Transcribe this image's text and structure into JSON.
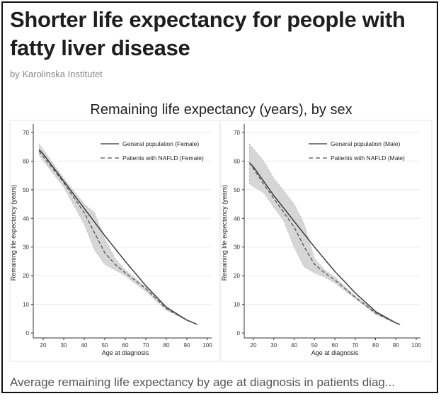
{
  "article": {
    "title": "Shorter life expectancy for people with fatty liver disease",
    "byline": "by Karolinska Institutet",
    "caption": "Average remaining life expectancy by age at diagnosis in patients diag..."
  },
  "chart_data": [
    {
      "type": "line",
      "title": "Remaining life expectancy (years), by sex",
      "xlabel": "Age at diagnosis",
      "ylabel": "Remaining life expectancy (years)",
      "xlim": [
        15,
        100
      ],
      "ylim": [
        0,
        70
      ],
      "xticks": [
        20,
        30,
        40,
        50,
        60,
        70,
        80,
        90,
        100
      ],
      "yticks": [
        0,
        10,
        20,
        30,
        40,
        50,
        60,
        70
      ],
      "grid": "horizontal",
      "legend_position": "top-right",
      "series": [
        {
          "name": "General population (Female)",
          "style": "solid",
          "color": "#333333",
          "x": [
            18,
            20,
            30,
            40,
            50,
            60,
            70,
            80,
            90,
            95
          ],
          "y": [
            64,
            62.5,
            53,
            43.5,
            34,
            25,
            16.5,
            9,
            4.5,
            3
          ]
        },
        {
          "name": "Patients with NAFLD (Female)",
          "style": "dashed",
          "color": "#555555",
          "x": [
            18,
            30,
            40,
            45,
            50,
            55,
            60,
            70,
            80,
            90,
            95
          ],
          "y": [
            63.5,
            52.5,
            42,
            35,
            28,
            24,
            21,
            15.5,
            8.5,
            4.5,
            3
          ],
          "ci_upper": [
            66,
            54,
            45,
            42,
            33,
            26,
            22,
            16,
            9,
            4.7,
            3.1
          ],
          "ci_lower": [
            62,
            51,
            38,
            29,
            24,
            22,
            20,
            14.5,
            8,
            4.3,
            2.9
          ]
        }
      ]
    },
    {
      "type": "line",
      "xlabel": "Age at diagnosis",
      "ylabel": "Remaining life expectancy (years)",
      "xlim": [
        15,
        100
      ],
      "ylim": [
        0,
        70
      ],
      "xticks": [
        20,
        30,
        40,
        50,
        60,
        70,
        80,
        90,
        100
      ],
      "yticks": [
        0,
        10,
        20,
        30,
        40,
        50,
        60,
        70
      ],
      "grid": "horizontal",
      "legend_position": "top-right",
      "series": [
        {
          "name": "General population (Male)",
          "style": "solid",
          "color": "#333333",
          "x": [
            18,
            20,
            30,
            40,
            50,
            60,
            70,
            80,
            90,
            92
          ],
          "y": [
            59.5,
            58,
            48,
            39,
            30,
            21.5,
            14,
            7.5,
            3.5,
            3
          ]
        },
        {
          "name": "Patients with NAFLD (Male)",
          "style": "dashed",
          "color": "#555555",
          "x": [
            18,
            25,
            30,
            35,
            40,
            45,
            50,
            55,
            60,
            70,
            80,
            90,
            92
          ],
          "y": [
            59.5,
            52,
            47,
            42,
            37,
            30,
            24,
            21,
            18.5,
            12.5,
            7,
            3.5,
            3
          ],
          "ci_upper": [
            66,
            60,
            54,
            49.5,
            45,
            38,
            26,
            22,
            19.5,
            13,
            7.5,
            3.7,
            3.1
          ],
          "ci_lower": [
            52,
            49,
            44,
            39,
            30,
            23,
            21,
            19.5,
            17.5,
            12,
            6.5,
            3.3,
            2.9
          ]
        }
      ]
    }
  ]
}
